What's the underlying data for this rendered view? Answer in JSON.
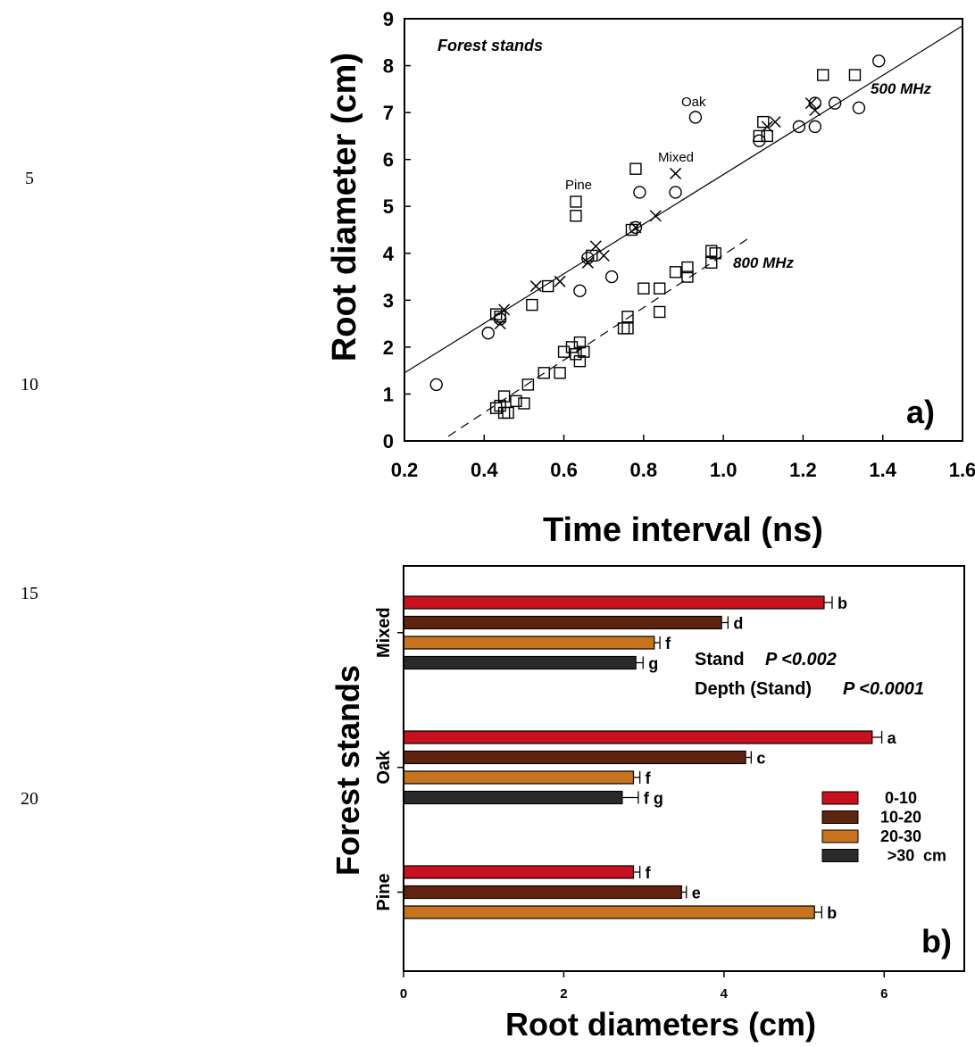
{
  "line_numbers": [
    "5",
    "10",
    "15",
    "20"
  ],
  "colors": {
    "d0_10": "#c8101e",
    "d10_20": "#5e2410",
    "d20_30": "#c8741e",
    "d30plus": "#2a2a2a"
  },
  "chart_data": [
    {
      "type": "scatter",
      "panel_label": "a)",
      "xlabel": "Time interval (ns)",
      "ylabel": "Root diameter (cm)",
      "xlim": [
        0.2,
        1.6
      ],
      "ylim": [
        0,
        9
      ],
      "x_ticks": [
        "0.2",
        "0.4",
        "0.6",
        "0.8",
        "1.0",
        "1.2",
        "1.4",
        "1.6"
      ],
      "y_ticks": [
        "0",
        "1",
        "2",
        "3",
        "4",
        "5",
        "6",
        "7",
        "8",
        "9"
      ],
      "annotations": {
        "title_note": "Forest stands",
        "pine": "Pine",
        "oak": "Oak",
        "mixed": "Mixed",
        "freq_500": "500 MHz",
        "freq_800": "800 MHz"
      },
      "lines": [
        {
          "name": "500 MHz",
          "style": "solid",
          "x": [
            0.2,
            1.6
          ],
          "y": [
            1.45,
            8.85
          ]
        },
        {
          "name": "800 MHz",
          "style": "dashed",
          "x": [
            0.31,
            1.06
          ],
          "y": [
            0.1,
            4.3
          ]
        }
      ],
      "series": [
        {
          "name": "Oak",
          "marker": "circle",
          "points": [
            [
              0.28,
              1.2
            ],
            [
              0.41,
              2.3
            ],
            [
              0.44,
              2.6
            ],
            [
              0.64,
              3.2
            ],
            [
              0.66,
              3.9
            ],
            [
              0.72,
              3.5
            ],
            [
              0.78,
              4.55
            ],
            [
              0.79,
              5.3
            ],
            [
              0.88,
              5.3
            ],
            [
              0.93,
              6.9
            ],
            [
              1.09,
              6.4
            ],
            [
              1.19,
              6.7
            ],
            [
              1.23,
              7.2
            ],
            [
              1.23,
              6.7
            ],
            [
              1.28,
              7.2
            ],
            [
              1.34,
              7.1
            ],
            [
              1.39,
              8.1
            ]
          ]
        },
        {
          "name": "Pine",
          "marker": "square",
          "points": [
            [
              0.43,
              2.7
            ],
            [
              0.44,
              2.65
            ],
            [
              0.52,
              2.9
            ],
            [
              0.56,
              3.3
            ],
            [
              0.63,
              5.1
            ],
            [
              0.63,
              4.8
            ],
            [
              0.67,
              3.95
            ],
            [
              0.77,
              4.5
            ],
            [
              0.78,
              5.8
            ],
            [
              1.09,
              6.5
            ],
            [
              1.1,
              6.8
            ],
            [
              1.11,
              6.5
            ],
            [
              1.25,
              7.8
            ],
            [
              1.33,
              7.8
            ]
          ]
        },
        {
          "name": "Mixed",
          "marker": "x",
          "points": [
            [
              0.44,
              2.5
            ],
            [
              0.45,
              2.8
            ],
            [
              0.53,
              3.3
            ],
            [
              0.59,
              3.4
            ],
            [
              0.66,
              3.8
            ],
            [
              0.68,
              4.15
            ],
            [
              0.7,
              3.95
            ],
            [
              0.78,
              4.55
            ],
            [
              0.83,
              4.8
            ],
            [
              0.88,
              5.7
            ],
            [
              1.11,
              6.7
            ],
            [
              1.13,
              6.8
            ],
            [
              1.22,
              7.2
            ],
            [
              1.23,
              7.05
            ]
          ]
        },
        {
          "name": "800 MHz",
          "marker": "square",
          "points": [
            [
              0.43,
              0.7
            ],
            [
              0.44,
              0.75
            ],
            [
              0.45,
              0.95
            ],
            [
              0.45,
              0.6
            ],
            [
              0.46,
              0.6
            ],
            [
              0.48,
              0.85
            ],
            [
              0.5,
              0.8
            ],
            [
              0.51,
              1.2
            ],
            [
              0.55,
              1.45
            ],
            [
              0.59,
              1.45
            ],
            [
              0.6,
              1.9
            ],
            [
              0.62,
              2.0
            ],
            [
              0.63,
              1.85
            ],
            [
              0.64,
              1.7
            ],
            [
              0.64,
              2.1
            ],
            [
              0.65,
              1.9
            ],
            [
              0.75,
              2.4
            ],
            [
              0.76,
              2.65
            ],
            [
              0.76,
              2.4
            ],
            [
              0.8,
              3.25
            ],
            [
              0.84,
              3.25
            ],
            [
              0.84,
              2.75
            ],
            [
              0.88,
              3.6
            ],
            [
              0.91,
              3.7
            ],
            [
              0.91,
              3.5
            ],
            [
              0.97,
              4.05
            ],
            [
              0.97,
              3.8
            ],
            [
              0.98,
              4.0
            ]
          ]
        }
      ]
    },
    {
      "type": "bar",
      "orientation": "horizontal",
      "panel_label": "b)",
      "xlabel": "Root diameters (cm)",
      "ylabel": "Forest stands",
      "xlim": [
        0,
        7
      ],
      "x_ticks": [
        "0",
        "2",
        "4",
        "6"
      ],
      "categories": [
        "Mixed",
        "Oak",
        "Pine"
      ],
      "legend": {
        "entries": [
          "0-10",
          "10-20",
          "20-30",
          ">30"
        ],
        "unit": "cm",
        "placement": "right"
      },
      "stats": [
        {
          "label": "Stand",
          "value": "P <0.002"
        },
        {
          "label": "Depth (Stand)",
          "value": "P <0.0001"
        }
      ],
      "series": [
        {
          "name": "0-10",
          "values": [
            5.25,
            5.85,
            2.87
          ],
          "errors": [
            0.1,
            0.12,
            0.08
          ],
          "letters": [
            "b",
            "a",
            "f"
          ]
        },
        {
          "name": "10-20",
          "values": [
            3.97,
            4.27,
            3.47
          ],
          "errors": [
            0.08,
            0.07,
            0.06
          ],
          "letters": [
            "d",
            "c",
            "e"
          ]
        },
        {
          "name": "20-30",
          "values": [
            3.13,
            2.87,
            5.13
          ],
          "errors": [
            0.07,
            0.08,
            0.09
          ],
          "letters": [
            "f",
            "f",
            "b"
          ]
        },
        {
          "name": ">30",
          "values": [
            2.9,
            2.73,
            null
          ],
          "errors": [
            0.09,
            0.2,
            null
          ],
          "letters": [
            "g",
            "f g",
            ""
          ]
        }
      ]
    }
  ]
}
